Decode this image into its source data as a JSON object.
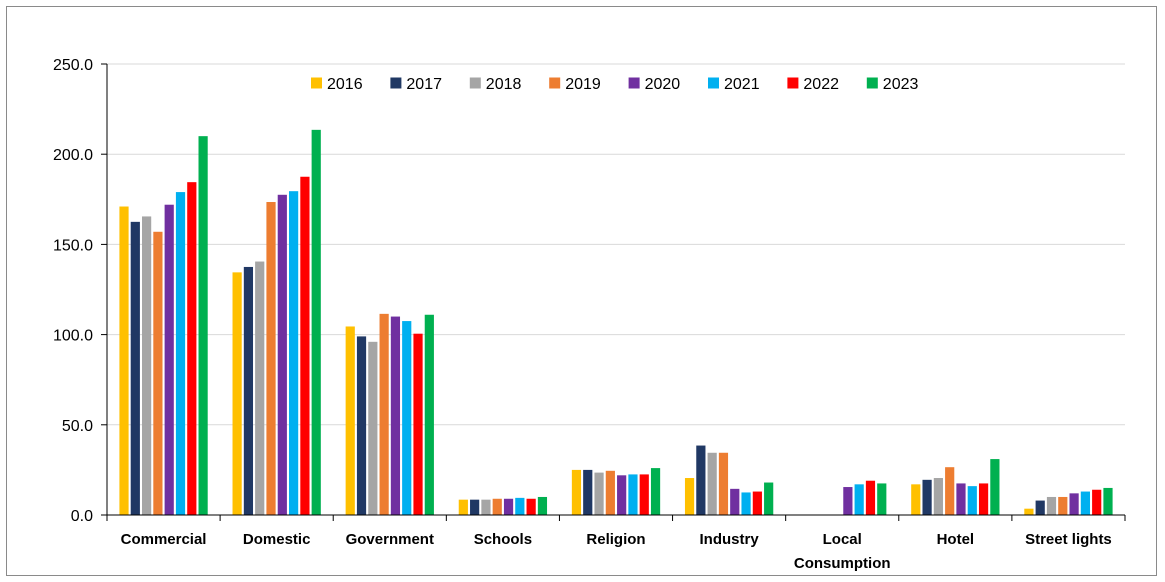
{
  "chart_data": {
    "type": "bar",
    "categories": [
      [
        "Commercial"
      ],
      [
        "Domestic"
      ],
      [
        "Government"
      ],
      [
        "Schools"
      ],
      [
        "Religion"
      ],
      [
        "Industry"
      ],
      [
        "Local",
        "Consumption"
      ],
      [
        "Hotel"
      ],
      [
        "Street lights"
      ]
    ],
    "series": [
      {
        "name": "2016",
        "color": "#FFC000",
        "values": [
          171,
          134.5,
          104.5,
          8.5,
          25,
          20.5,
          null,
          17,
          3.5
        ]
      },
      {
        "name": "2017",
        "color": "#203864",
        "values": [
          162.5,
          137.5,
          99,
          8.5,
          25,
          38.5,
          null,
          19.5,
          8
        ]
      },
      {
        "name": "2018",
        "color": "#A5A5A5",
        "values": [
          165.5,
          140.5,
          96,
          8.5,
          23.5,
          34.5,
          null,
          20.5,
          10
        ]
      },
      {
        "name": "2019",
        "color": "#ED7D31",
        "values": [
          157,
          173.5,
          111.5,
          9,
          24.5,
          34.5,
          null,
          26.5,
          10
        ]
      },
      {
        "name": "2020",
        "color": "#7030A0",
        "values": [
          172,
          177.5,
          110,
          9,
          22,
          14.5,
          15.5,
          17.5,
          12
        ]
      },
      {
        "name": "2021",
        "color": "#00B0F0",
        "values": [
          179,
          179.5,
          107.5,
          9.5,
          22.5,
          12.5,
          17,
          16,
          13
        ]
      },
      {
        "name": "2022",
        "color": "#FF0000",
        "values": [
          184.5,
          187.5,
          100.5,
          9,
          22.5,
          13,
          19,
          17.5,
          14
        ]
      },
      {
        "name": "2023",
        "color": "#00B050",
        "values": [
          210,
          213.5,
          111,
          10,
          26,
          18,
          17.5,
          31,
          15
        ]
      }
    ],
    "ylim": [
      0,
      250
    ],
    "yticks": [
      "0.0",
      "50.0",
      "100.0",
      "150.0",
      "200.0",
      "250.0"
    ],
    "grid": true,
    "legend_position": "top-center",
    "title": "",
    "xlabel": "",
    "ylabel": ""
  }
}
